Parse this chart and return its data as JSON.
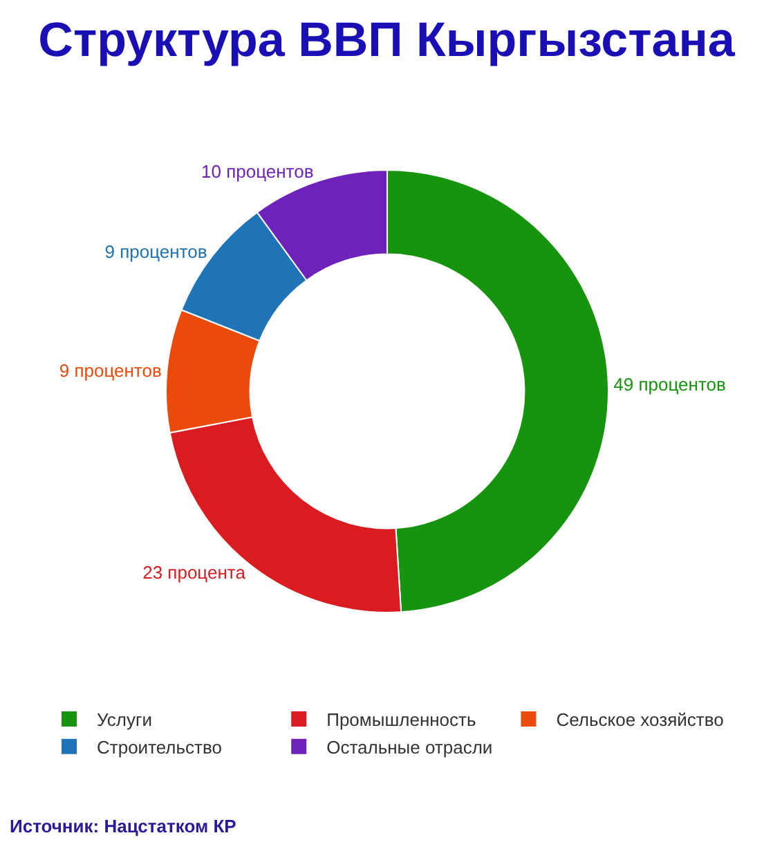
{
  "chart_data": {
    "type": "donut",
    "title": "Структура ВВП Кыргызстана",
    "categories": [
      "Услуги",
      "Промышленность",
      "Сельское хозяйство",
      "Строительство",
      "Остальные отрасли"
    ],
    "values": [
      49,
      23,
      9,
      9,
      10
    ],
    "colors": [
      "#16940e",
      "#da1b1f",
      "#ea4a0a",
      "#1f73b7",
      "#6d22b9"
    ],
    "value_labels": [
      "49 процентов",
      "23 процента",
      "9 процентов",
      "9 процентов",
      "10 процентов"
    ],
    "legend": "bottom",
    "annotations": [
      "Источник: Нацстатком КР"
    ]
  }
}
